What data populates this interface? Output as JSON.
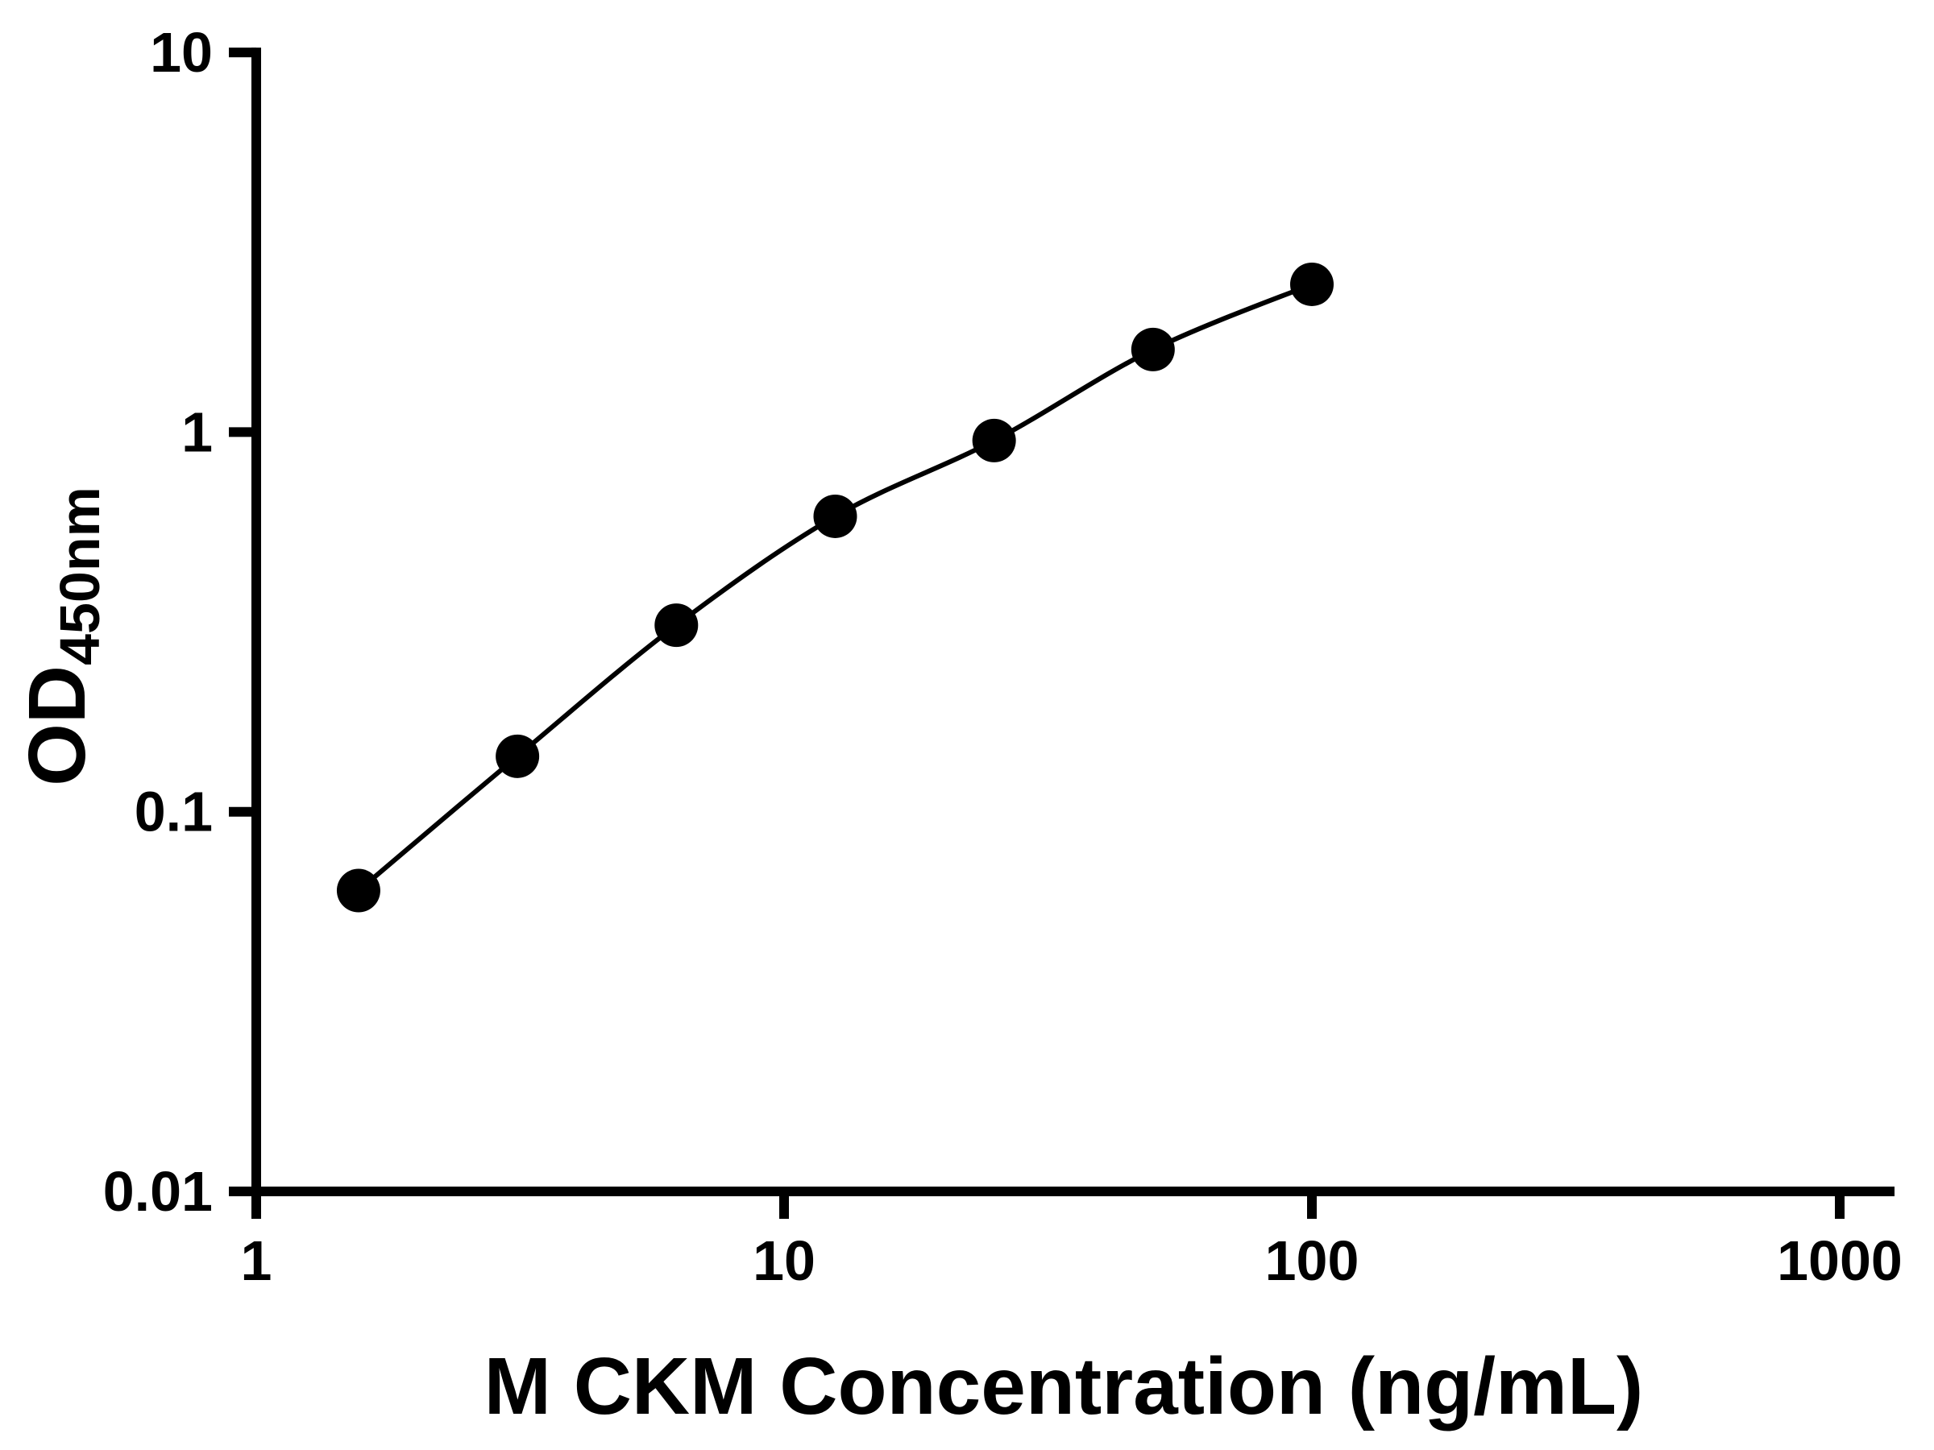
{
  "figure": {
    "background_color": "#ffffff",
    "description": "ELISA standard curve, log-log scatter plot with fitted smooth curve"
  },
  "chart_data": {
    "type": "scatter",
    "has_fit_line": true,
    "x": [
      1.5625,
      3.125,
      6.25,
      12.5,
      25,
      50,
      100
    ],
    "y": [
      0.062,
      0.14,
      0.31,
      0.6,
      0.95,
      1.65,
      2.45
    ],
    "title": "",
    "xlabel": "M CKM Concentration (ng/mL)",
    "ylabel_main": "OD",
    "ylabel_sub": "450nm",
    "x_scale": "log",
    "y_scale": "log",
    "xlim": [
      1,
      1000
    ],
    "ylim": [
      0.01,
      10
    ],
    "x_ticks": {
      "values": [
        1,
        10,
        100,
        1000
      ],
      "labels": [
        "1",
        "10",
        "100",
        "1000"
      ]
    },
    "y_ticks": {
      "values": [
        0.01,
        0.1,
        1,
        10
      ],
      "labels": [
        "0.01",
        "0.1",
        "1",
        "10"
      ]
    },
    "grid": false,
    "legend": null,
    "marker_color": "#000000",
    "marker_shape": "circle",
    "line_color": "#000000",
    "axis_color": "#000000"
  }
}
